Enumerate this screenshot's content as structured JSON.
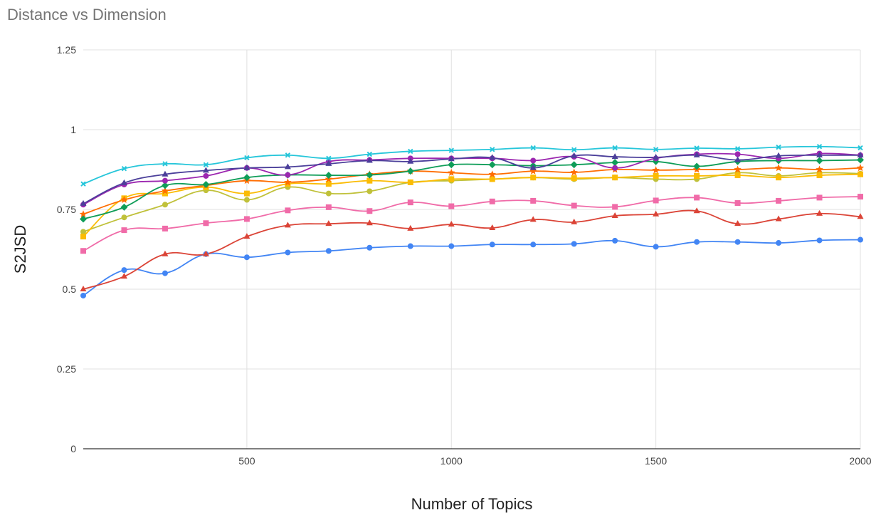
{
  "chart_data": {
    "type": "line",
    "title": "Distance vs Dimension",
    "xlabel": "Number of Topics",
    "ylabel": "S2JSD",
    "xlim": [
      100,
      2000
    ],
    "ylim": [
      0,
      1.25
    ],
    "x_ticks": [
      500,
      1000,
      1500,
      2000
    ],
    "x_tick_labels": [
      "500",
      "1000",
      "1500",
      "2000"
    ],
    "y_ticks": [
      0,
      0.25,
      0.5,
      0.75,
      1,
      1.25
    ],
    "y_tick_labels": [
      "0",
      "0.25",
      "0.5",
      "0.75",
      "1",
      "1.25"
    ],
    "grid": true,
    "legend": "none",
    "x": [
      100,
      200,
      300,
      400,
      500,
      600,
      700,
      800,
      900,
      1000,
      1100,
      1200,
      1300,
      1400,
      1500,
      1600,
      1700,
      1800,
      1900,
      2000
    ],
    "series": [
      {
        "color": "#4285f4",
        "marker": "circle",
        "values": [
          0.48,
          0.56,
          0.55,
          0.61,
          0.6,
          0.615,
          0.62,
          0.63,
          0.635,
          0.635,
          0.64,
          0.64,
          0.642,
          0.652,
          0.633,
          0.648,
          0.648,
          0.645,
          0.653,
          0.655
        ]
      },
      {
        "color": "#db4437",
        "marker": "triangle",
        "values": [
          0.5,
          0.54,
          0.61,
          0.61,
          0.665,
          0.7,
          0.705,
          0.707,
          0.69,
          0.703,
          0.692,
          0.718,
          0.71,
          0.73,
          0.735,
          0.745,
          0.705,
          0.72,
          0.737,
          0.727
        ]
      },
      {
        "color": "#f06ba8",
        "marker": "square",
        "values": [
          0.62,
          0.685,
          0.69,
          0.707,
          0.72,
          0.747,
          0.757,
          0.745,
          0.772,
          0.76,
          0.775,
          0.777,
          0.762,
          0.758,
          0.778,
          0.787,
          0.77,
          0.777,
          0.787,
          0.79
        ]
      },
      {
        "color": "#c0c13a",
        "marker": "circle",
        "values": [
          0.68,
          0.725,
          0.765,
          0.81,
          0.78,
          0.82,
          0.8,
          0.807,
          0.835,
          0.84,
          0.845,
          0.85,
          0.845,
          0.85,
          0.845,
          0.845,
          0.865,
          0.855,
          0.865,
          0.862
        ]
      },
      {
        "color": "#fbbc04",
        "marker": "square",
        "values": [
          0.665,
          0.785,
          0.8,
          0.82,
          0.8,
          0.83,
          0.83,
          0.84,
          0.835,
          0.845,
          0.845,
          0.85,
          0.848,
          0.85,
          0.855,
          0.855,
          0.857,
          0.85,
          0.857,
          0.86
        ]
      },
      {
        "color": "#ff6d01",
        "marker": "star",
        "values": [
          0.735,
          0.78,
          0.808,
          0.825,
          0.84,
          0.835,
          0.845,
          0.86,
          0.87,
          0.865,
          0.86,
          0.87,
          0.866,
          0.875,
          0.873,
          0.875,
          0.875,
          0.88,
          0.875,
          0.88
        ]
      },
      {
        "color": "#0f9d58",
        "marker": "diamond",
        "values": [
          0.72,
          0.757,
          0.825,
          0.828,
          0.85,
          0.858,
          0.857,
          0.858,
          0.87,
          0.89,
          0.89,
          0.887,
          0.89,
          0.897,
          0.9,
          0.885,
          0.9,
          0.903,
          0.903,
          0.905
        ]
      },
      {
        "color": "#9c27b0",
        "marker": "circle",
        "values": [
          0.765,
          0.828,
          0.84,
          0.855,
          0.88,
          0.858,
          0.9,
          0.905,
          0.91,
          0.91,
          0.91,
          0.903,
          0.915,
          0.88,
          0.91,
          0.923,
          0.923,
          0.91,
          0.925,
          0.92
        ]
      },
      {
        "color": "#4b3f9a",
        "marker": "triangle",
        "values": [
          0.768,
          0.833,
          0.86,
          0.872,
          0.88,
          0.883,
          0.893,
          0.903,
          0.9,
          0.908,
          0.912,
          0.88,
          0.918,
          0.915,
          0.913,
          0.92,
          0.905,
          0.918,
          0.92,
          0.92
        ]
      },
      {
        "color": "#26c6da",
        "marker": "cross",
        "values": [
          0.83,
          0.878,
          0.893,
          0.89,
          0.912,
          0.92,
          0.91,
          0.923,
          0.932,
          0.935,
          0.938,
          0.943,
          0.937,
          0.943,
          0.938,
          0.942,
          0.94,
          0.945,
          0.947,
          0.943
        ]
      }
    ]
  }
}
